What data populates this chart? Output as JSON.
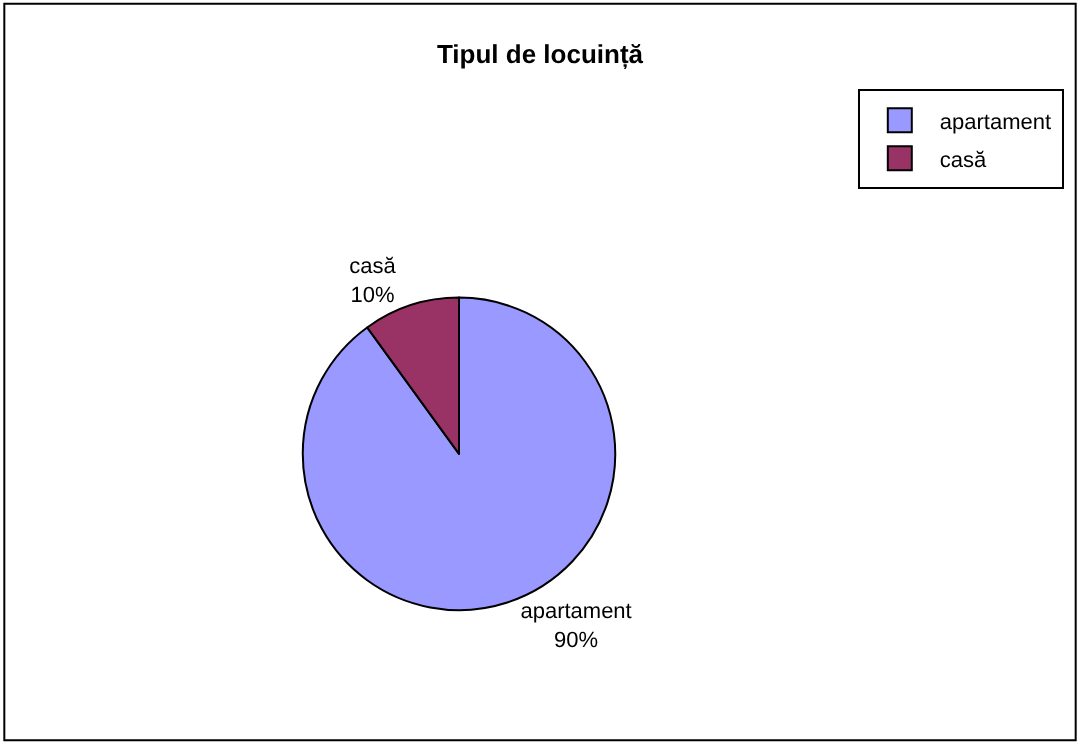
{
  "chart_data": {
    "type": "pie",
    "title": "Tipul de locuință",
    "categories": [
      "apartament",
      "casă"
    ],
    "values": [
      90,
      10
    ],
    "colors": [
      "#9999ff",
      "#993366"
    ],
    "value_labels": [
      "90%",
      "10%"
    ],
    "legend": "top right"
  }
}
